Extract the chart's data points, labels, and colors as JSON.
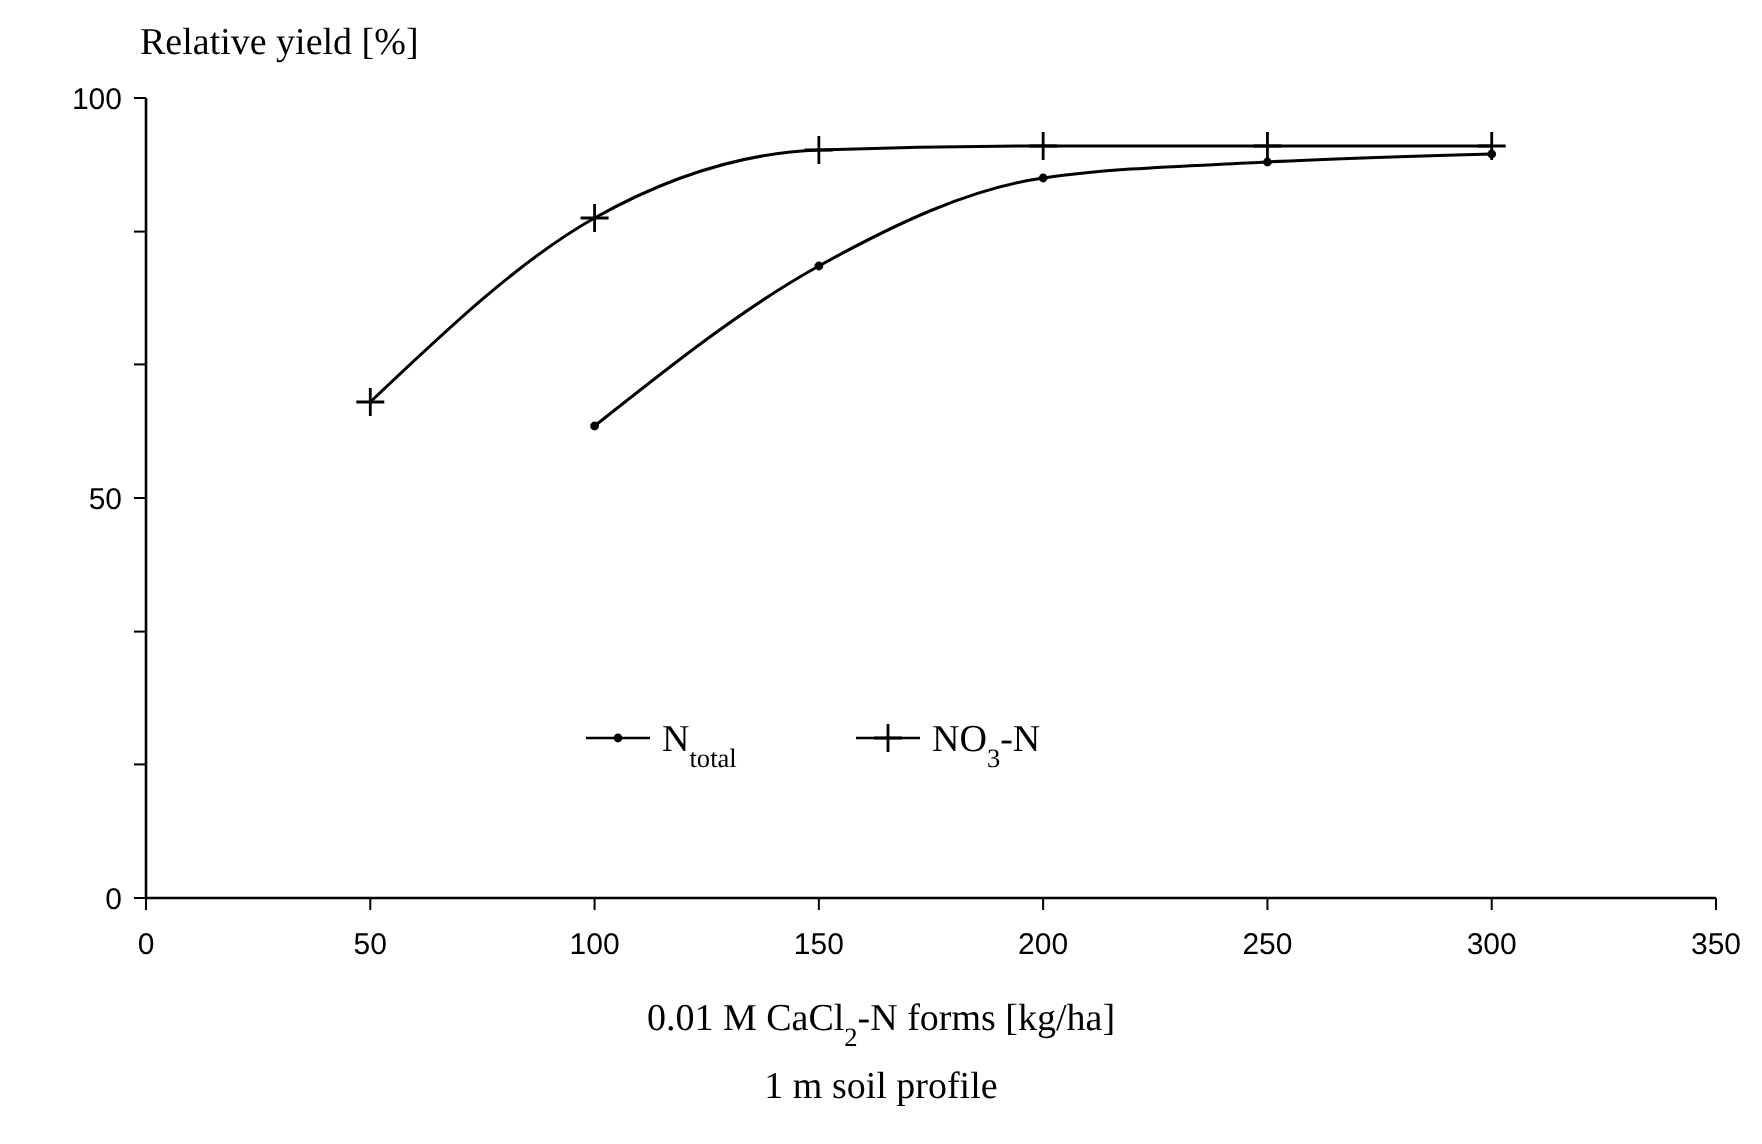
{
  "chart_data": {
    "type": "line",
    "ylabel": "Relative yield [%]",
    "xlabel": "0.01 M CaCl$_{2}$-N forms [kg/ha]",
    "annotations": [
      "1 m soil profile"
    ],
    "xlim": [
      0,
      350
    ],
    "xticks": [
      0,
      50,
      100,
      150,
      200,
      250,
      300,
      350
    ],
    "ylim": [
      0,
      100
    ],
    "yticks": [
      0,
      {
        "value": 16.7,
        "label": null
      },
      {
        "value": 33.3,
        "label": null
      },
      50,
      {
        "value": 66.7,
        "label": null
      },
      {
        "value": 83.3,
        "label": null
      },
      100
    ],
    "legend": "bottom",
    "grid": false,
    "line_style": "solid",
    "series": [
      {
        "name": "N$_{total}$",
        "color": "#000000",
        "marker": "circle",
        "x": [
          100,
          150,
          200,
          250,
          300
        ],
        "values": [
          59,
          79,
          90,
          92,
          93
        ]
      },
      {
        "name": "NO$_{3}$-N",
        "color": "#000000",
        "marker": "cross",
        "x": [
          50,
          100,
          150,
          200,
          250,
          300
        ],
        "values": [
          62,
          85,
          93.5,
          94,
          94,
          94
        ]
      }
    ]
  }
}
